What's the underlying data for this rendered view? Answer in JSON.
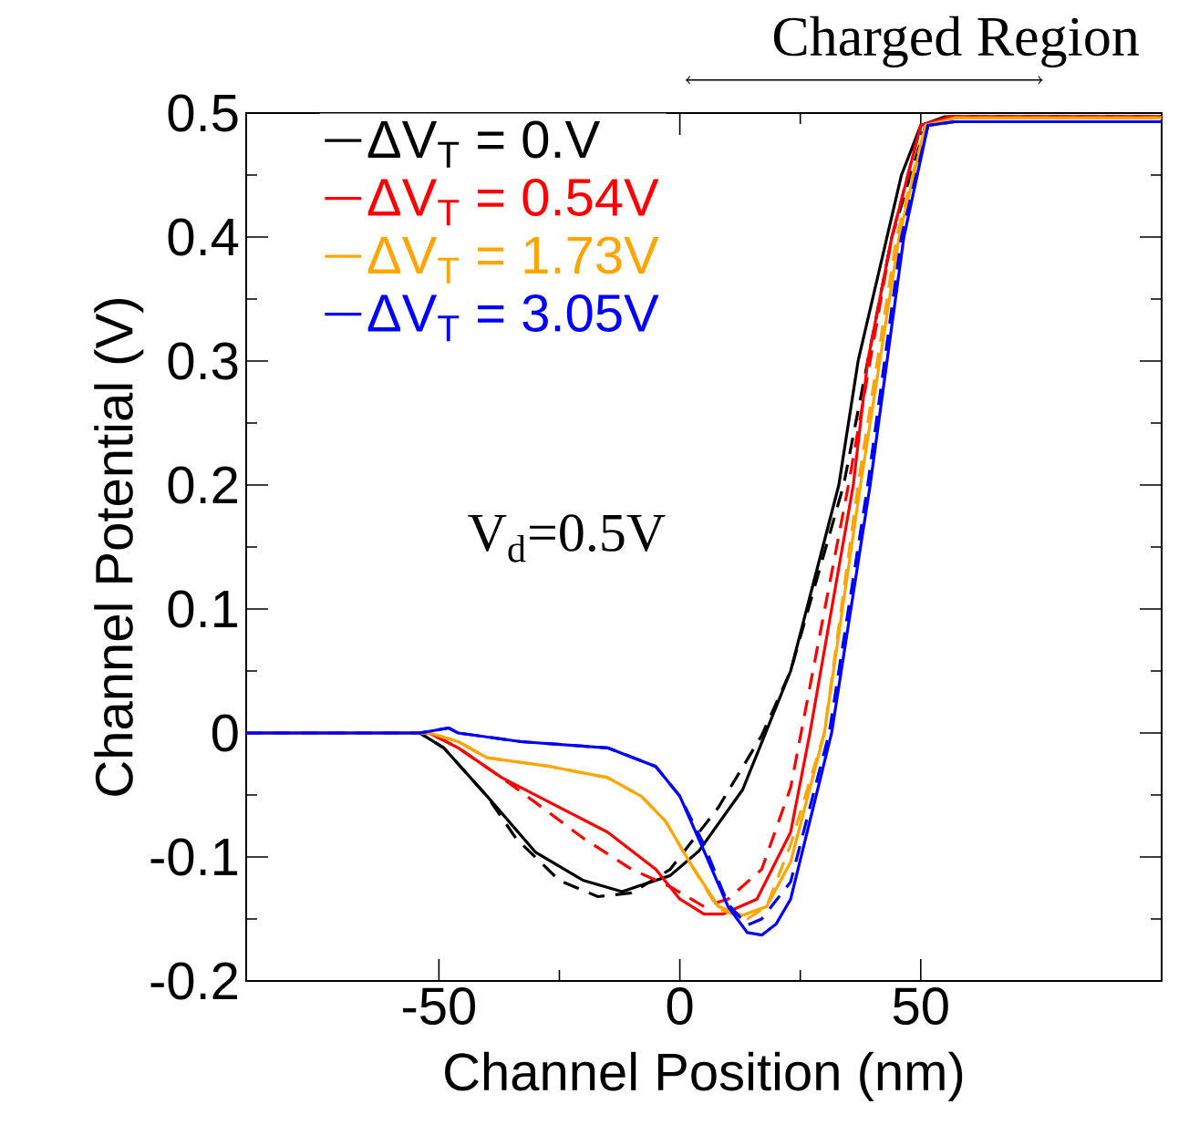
{
  "chart_data": {
    "type": "line",
    "xlabel": "Channel Position (nm)",
    "ylabel": "Channel Potential (V)",
    "xlim": [
      -90,
      100
    ],
    "ylim": [
      -0.2,
      0.5
    ],
    "xticks": [
      -50,
      0,
      50
    ],
    "yticks": [
      {
        "value": -0.2,
        "label": "-0.2"
      },
      {
        "value": -0.1,
        "label": "-0.1"
      },
      {
        "value": 0,
        "label": "0"
      },
      {
        "value": 0.1,
        "label": "0.1"
      },
      {
        "value": 0.2,
        "label": "0.2"
      },
      {
        "value": 0.3,
        "label": "0.3"
      },
      {
        "value": 0.4,
        "label": "0.4"
      },
      {
        "value": 0.5,
        "label": "0.5"
      }
    ],
    "legend": "top left",
    "grid": false,
    "marker": "none",
    "annotations": [
      "V$_{d}$=0.5V",
      "Charged Region"
    ],
    "series": [
      {
        "name": "ΔV$_{T}$ =  0.V",
        "color": "#000000",
        "line_style": "solid",
        "x": [
          -90,
          -54,
          -49,
          -40,
          -30,
          -20,
          -12,
          -2,
          4,
          13,
          23,
          33,
          37,
          43,
          46,
          50,
          55,
          100
        ],
        "values": [
          0,
          0,
          -0.012,
          -0.051,
          -0.096,
          -0.119,
          -0.128,
          -0.115,
          -0.095,
          -0.046,
          0.05,
          0.2,
          0.3,
          0.4,
          0.45,
          0.49,
          0.497,
          0.497
        ]
      },
      {
        "color": "#000000",
        "line_style": "dashed",
        "x": [
          -90,
          -54,
          -49,
          -40,
          -34,
          -25,
          -17,
          -10,
          -2,
          8,
          17,
          23,
          34,
          44,
          51,
          56,
          100
        ],
        "values": [
          0,
          0,
          -0.012,
          -0.051,
          -0.085,
          -0.119,
          -0.132,
          -0.129,
          -0.11,
          -0.06,
          -0.002,
          0.05,
          0.2,
          0.4,
          0.49,
          0.497,
          0.497
        ]
      },
      {
        "name": "ΔV$_{T}$ =  0.54V",
        "color": "#ff0000",
        "line_style": "solid",
        "x": [
          -90,
          -52,
          -46,
          -37,
          -27,
          -15,
          -5,
          0,
          5,
          9,
          16,
          23,
          27,
          36,
          39,
          44,
          50,
          56,
          100
        ],
        "values": [
          0,
          0,
          -0.012,
          -0.036,
          -0.056,
          -0.08,
          -0.11,
          -0.134,
          -0.146,
          -0.146,
          -0.134,
          -0.08,
          0,
          0.2,
          0.3,
          0.4,
          0.49,
          0.497,
          0.497
        ]
      },
      {
        "color": "#ff0000",
        "line_style": "dashed",
        "x": [
          -90,
          -52,
          -46,
          -37,
          -30,
          -20,
          -10,
          -2,
          5,
          10,
          17,
          23,
          35,
          44,
          50,
          56,
          100
        ],
        "values": [
          0,
          0,
          -0.012,
          -0.036,
          -0.056,
          -0.085,
          -0.11,
          -0.124,
          -0.14,
          -0.134,
          -0.11,
          -0.044,
          0.2,
          0.4,
          0.49,
          0.497,
          0.497
        ]
      },
      {
        "name": "ΔV$_{T}$ =  1.73V",
        "color": "#ffa500",
        "line_style": "solid",
        "x": [
          -90,
          -52,
          -46,
          -40,
          -27,
          -15,
          -8,
          -3,
          2,
          8,
          13,
          18,
          23,
          30,
          37.5,
          45.5,
          51,
          57,
          100
        ],
        "values": [
          0,
          0,
          -0.007,
          -0.02,
          -0.027,
          -0.036,
          -0.051,
          -0.071,
          -0.104,
          -0.14,
          -0.147,
          -0.14,
          -0.104,
          0,
          0.2,
          0.4,
          0.49,
          0.496,
          0.496
        ]
      },
      {
        "color": "#ffa500",
        "line_style": "dashed",
        "x": [
          -90,
          -52,
          -46,
          -40,
          -27,
          -15,
          -8,
          -3,
          2,
          8,
          14,
          18,
          23,
          30,
          37,
          45,
          51,
          57,
          100
        ],
        "values": [
          0,
          0,
          -0.007,
          -0.02,
          -0.027,
          -0.036,
          -0.051,
          -0.071,
          -0.104,
          -0.142,
          -0.15,
          -0.14,
          -0.09,
          0,
          0.2,
          0.4,
          0.49,
          0.496,
          0.496
        ]
      },
      {
        "name": "ΔV$_{T}$ =  3.05V",
        "color": "#0000ff",
        "line_style": "solid",
        "x": [
          -90,
          -54,
          -48,
          -46,
          -33,
          -15,
          -5,
          0,
          5,
          10,
          14,
          17,
          20,
          23,
          31.5,
          39.5,
          46.5,
          51.5,
          57,
          100
        ],
        "values": [
          0,
          0,
          0.004,
          0,
          -0.007,
          -0.012,
          -0.027,
          -0.051,
          -0.095,
          -0.14,
          -0.161,
          -0.163,
          -0.154,
          -0.134,
          0,
          0.2,
          0.4,
          0.49,
          0.493,
          0.493
        ]
      },
      {
        "color": "#0000ff",
        "line_style": "dashed",
        "x": [
          -90,
          -54,
          -48,
          -46,
          -33,
          -15,
          -5,
          0,
          5,
          10,
          14,
          17,
          23,
          31,
          39,
          46,
          51.5,
          57,
          100
        ],
        "values": [
          0,
          0,
          0.004,
          0,
          -0.007,
          -0.012,
          -0.027,
          -0.051,
          -0.09,
          -0.138,
          -0.155,
          -0.15,
          -0.12,
          0,
          0.2,
          0.4,
          0.49,
          0.493,
          0.493
        ]
      }
    ]
  }
}
